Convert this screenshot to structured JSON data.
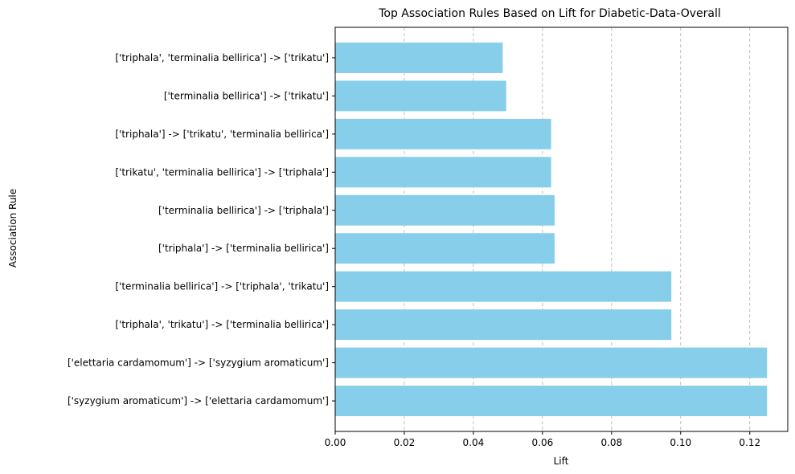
{
  "chart_data": {
    "type": "bar",
    "orientation": "horizontal",
    "title": "Top Association Rules Based on Lift for Diabetic-Data-Overall",
    "xlabel": "Lift",
    "ylabel": "Association Rule",
    "categories": [
      "['syzygium aromaticum'] -> ['elettaria cardamomum']",
      "['elettaria cardamomum'] -> ['syzygium aromaticum']",
      "['triphala', 'trikatu'] -> ['terminalia bellirica']",
      "['terminalia bellirica'] -> ['triphala', 'trikatu']",
      "['triphala'] -> ['terminalia bellirica']",
      "['terminalia bellirica'] -> ['triphala']",
      "['trikatu', 'terminalia bellirica'] -> ['triphala']",
      "['triphala'] -> ['trikatu', 'terminalia bellirica']",
      "['terminalia bellirica'] -> ['trikatu']",
      "['triphala', 'terminalia bellirica'] -> ['trikatu']"
    ],
    "values": [
      0.125,
      0.125,
      0.0973,
      0.0973,
      0.0635,
      0.0635,
      0.0625,
      0.0625,
      0.0495,
      0.0485
    ],
    "xlim": [
      0,
      0.131
    ],
    "xticks": [
      0,
      0.02,
      0.04,
      0.06,
      0.08,
      0.1,
      0.12
    ],
    "xtick_labels": [
      "0.00",
      "0.02",
      "0.04",
      "0.06",
      "0.08",
      "0.10",
      "0.12"
    ],
    "grid": "x-axis dashed",
    "bar_color": "#87ceeb",
    "grid_color": "#b0b0b0"
  }
}
